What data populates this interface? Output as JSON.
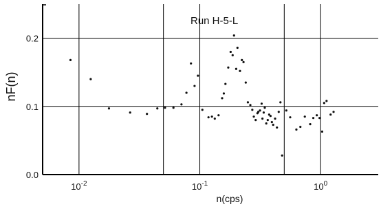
{
  "chart_data": {
    "type": "scatter",
    "title": "",
    "annotation": "Run H-5-L",
    "xlabel": "n(cps)",
    "ylabel": "nF(n)",
    "x_scale": "log",
    "xlim": [
      0.005,
      3.0
    ],
    "ylim": [
      0.0,
      0.25
    ],
    "grid": true,
    "x_grid_lines": [
      0.01,
      0.05,
      0.1,
      0.5,
      1.0
    ],
    "y_grid_lines": [
      0.1,
      0.2
    ],
    "x_ticks": [
      {
        "value": 0.01,
        "base": "10",
        "exp": "-2"
      },
      {
        "value": 0.1,
        "base": "10",
        "exp": "-1"
      },
      {
        "value": 1.0,
        "base": "10",
        "exp": "0"
      }
    ],
    "y_ticks": [
      {
        "value": 0.0,
        "label": "0.0"
      },
      {
        "value": 0.1,
        "label": "0.1"
      },
      {
        "value": 0.2,
        "label": "0.2"
      }
    ],
    "series": [
      {
        "points": [
          [
            0.0085,
            0.168
          ],
          [
            0.0125,
            0.14
          ],
          [
            0.0177,
            0.097
          ],
          [
            0.0265,
            0.091
          ],
          [
            0.0365,
            0.089
          ],
          [
            0.0445,
            0.097
          ],
          [
            0.0515,
            0.098
          ],
          [
            0.0605,
            0.098
          ],
          [
            0.0705,
            0.103
          ],
          [
            0.0775,
            0.12
          ],
          [
            0.0845,
            0.163
          ],
          [
            0.0905,
            0.13
          ],
          [
            0.0965,
            0.145
          ],
          [
            0.105,
            0.095
          ],
          [
            0.118,
            0.084
          ],
          [
            0.126,
            0.085
          ],
          [
            0.133,
            0.082
          ],
          [
            0.143,
            0.087
          ],
          [
            0.153,
            0.112
          ],
          [
            0.158,
            0.119
          ],
          [
            0.163,
            0.133
          ],
          [
            0.172,
            0.157
          ],
          [
            0.18,
            0.18
          ],
          [
            0.187,
            0.175
          ],
          [
            0.192,
            0.204
          ],
          [
            0.2,
            0.155
          ],
          [
            0.205,
            0.186
          ],
          [
            0.215,
            0.152
          ],
          [
            0.223,
            0.168
          ],
          [
            0.23,
            0.165
          ],
          [
            0.24,
            0.135
          ],
          [
            0.25,
            0.106
          ],
          [
            0.262,
            0.102
          ],
          [
            0.272,
            0.095
          ],
          [
            0.28,
            0.085
          ],
          [
            0.29,
            0.08
          ],
          [
            0.3,
            0.09
          ],
          [
            0.305,
            0.092
          ],
          [
            0.315,
            0.094
          ],
          [
            0.325,
            0.104
          ],
          [
            0.33,
            0.082
          ],
          [
            0.338,
            0.091
          ],
          [
            0.345,
            0.098
          ],
          [
            0.355,
            0.075
          ],
          [
            0.365,
            0.08
          ],
          [
            0.375,
            0.088
          ],
          [
            0.385,
            0.086
          ],
          [
            0.395,
            0.077
          ],
          [
            0.405,
            0.073
          ],
          [
            0.42,
            0.082
          ],
          [
            0.435,
            0.069
          ],
          [
            0.45,
            0.092
          ],
          [
            0.465,
            0.106
          ],
          [
            0.48,
            0.028
          ],
          [
            0.52,
            0.094
          ],
          [
            0.56,
            0.084
          ],
          [
            0.63,
            0.066
          ],
          [
            0.68,
            0.07
          ],
          [
            0.74,
            0.085
          ],
          [
            0.82,
            0.074
          ],
          [
            0.87,
            0.083
          ],
          [
            0.93,
            0.087
          ],
          [
            0.98,
            0.083
          ],
          [
            1.03,
            0.063
          ],
          [
            1.07,
            0.105
          ],
          [
            1.12,
            0.108
          ],
          [
            1.21,
            0.088
          ],
          [
            1.28,
            0.092
          ]
        ]
      }
    ]
  }
}
